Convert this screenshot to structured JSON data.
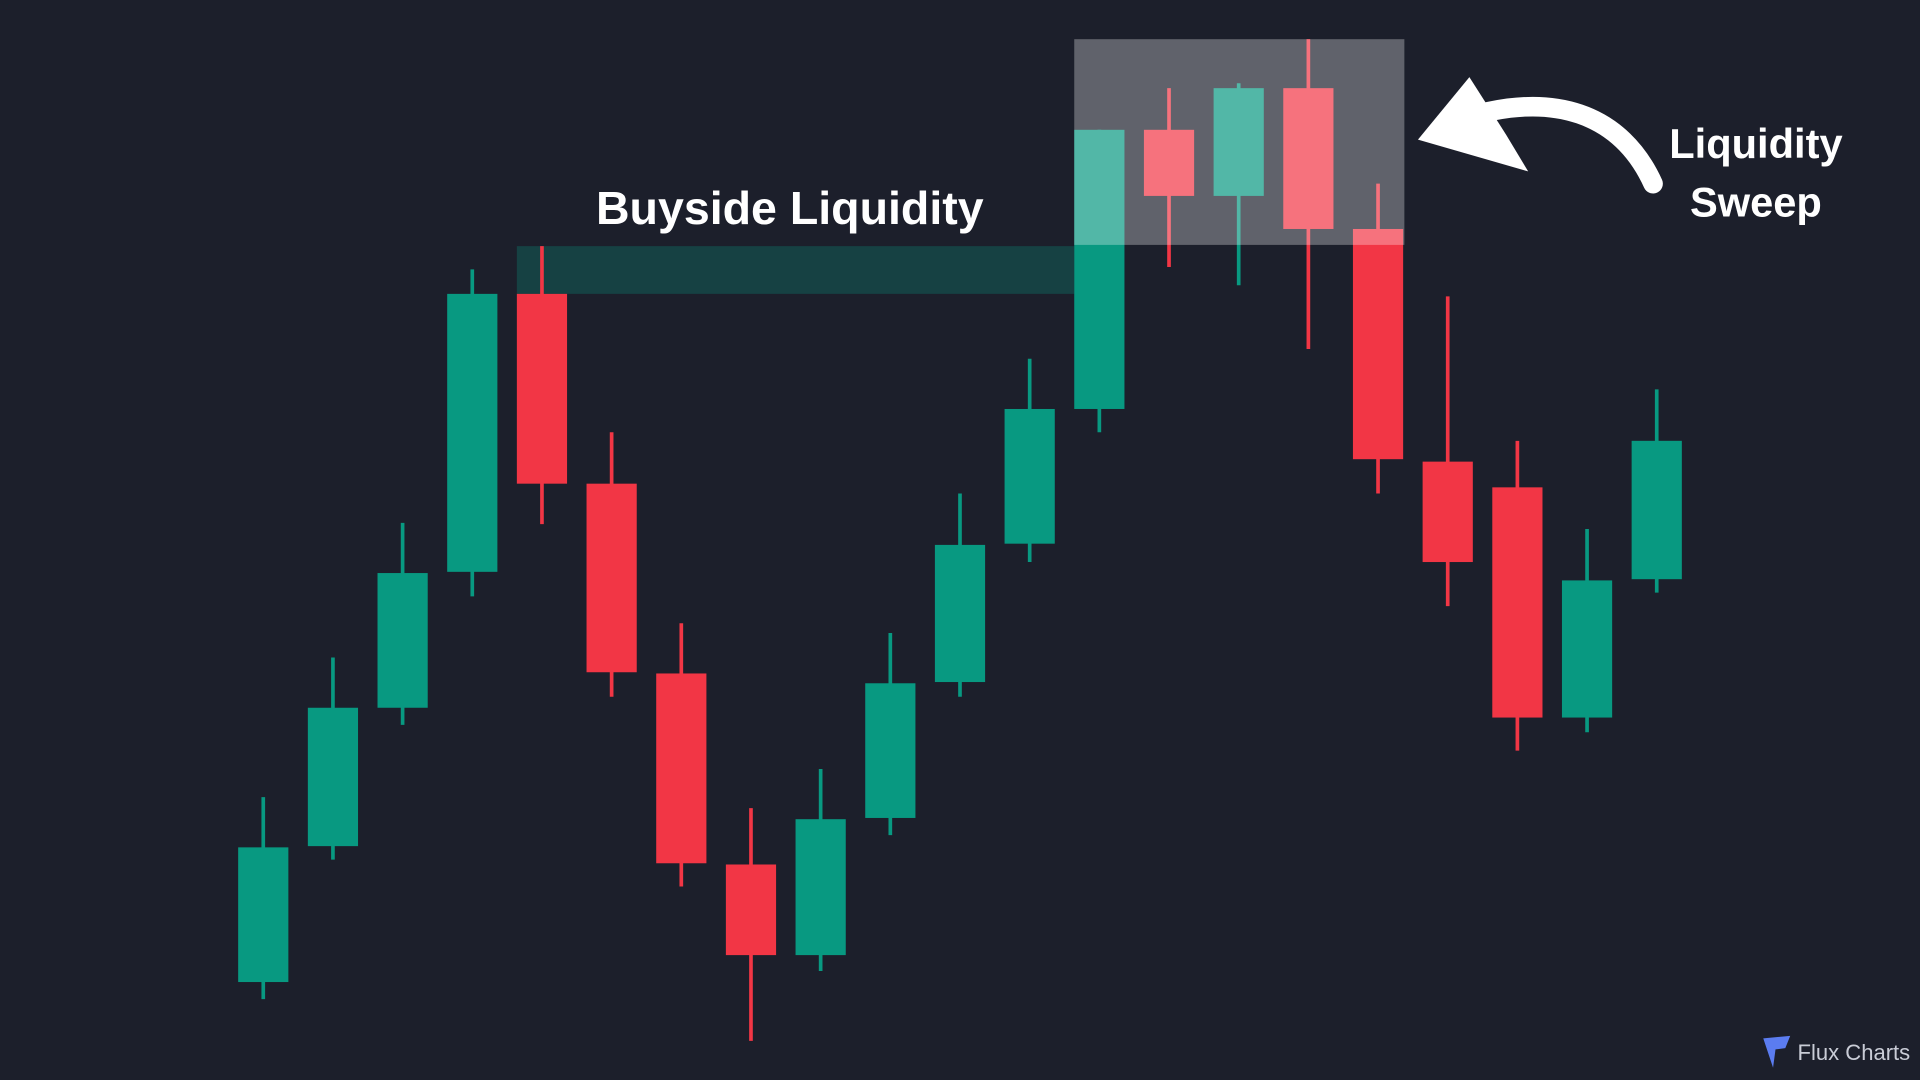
{
  "chart_data": {
    "type": "candlestick",
    "up_color": "#089981",
    "down_color": "#f23645",
    "ylim": [
      0,
      882
    ],
    "open": [
      80,
      191,
      304,
      415,
      642,
      487,
      332,
      176,
      102,
      214,
      325,
      438,
      548,
      776,
      722,
      810,
      695,
      505,
      484,
      296,
      409
    ],
    "high": [
      231,
      345,
      455,
      662,
      681,
      529,
      373,
      222,
      254,
      365,
      479,
      589,
      776,
      810,
      814,
      850,
      732,
      640,
      522,
      450,
      564
    ],
    "low": [
      66,
      180,
      290,
      395,
      454,
      313,
      158,
      32,
      89,
      200,
      313,
      423,
      529,
      664,
      649,
      597,
      479,
      387,
      269,
      284,
      398
    ],
    "close": [
      190,
      304,
      414,
      642,
      487,
      333,
      177,
      102,
      213,
      324,
      437,
      548,
      776,
      722,
      810,
      695,
      507,
      423,
      296,
      408,
      522
    ],
    "buyside_label": "Buyside Liquidity",
    "sweep_label": [
      "Liquidity",
      "Sweep"
    ],
    "logo": "Flux Charts"
  }
}
